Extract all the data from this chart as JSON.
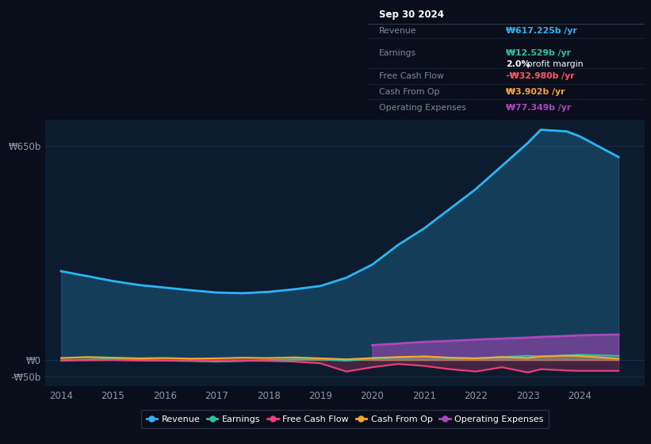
{
  "bg_color": "#0a0e1a",
  "plot_bg_color": "#0d1b2e",
  "grid_color": "#1a3a5c",
  "years": [
    2014,
    2014.5,
    2015,
    2015.5,
    2016,
    2016.5,
    2017,
    2017.5,
    2018,
    2018.5,
    2019,
    2019.5,
    2020,
    2020.5,
    2021,
    2021.5,
    2022,
    2022.5,
    2023,
    2023.25,
    2023.75,
    2024,
    2024.75
  ],
  "revenue": [
    270,
    255,
    240,
    228,
    220,
    212,
    205,
    203,
    207,
    215,
    225,
    250,
    290,
    350,
    400,
    460,
    520,
    590,
    660,
    700,
    695,
    680,
    617
  ],
  "earnings": [
    -2,
    1,
    3,
    0,
    -2,
    -3,
    -5,
    -3,
    -1,
    2,
    2,
    -2,
    4,
    8,
    10,
    6,
    5,
    9,
    13,
    10,
    14,
    16,
    12.5
  ],
  "free_cash_flow": [
    -1,
    -1,
    0,
    -2,
    -2,
    -1,
    -3,
    -2,
    -3,
    -5,
    -10,
    -35,
    -22,
    -12,
    -18,
    -28,
    -35,
    -22,
    -38,
    -28,
    -32,
    -33,
    -33
  ],
  "cash_from_op": [
    6,
    9,
    7,
    5,
    6,
    4,
    5,
    7,
    6,
    8,
    5,
    2,
    6,
    9,
    11,
    7,
    5,
    9,
    6,
    11,
    13,
    12,
    3.9
  ],
  "operating_expenses": [
    0,
    0,
    0,
    0,
    0,
    0,
    0,
    0,
    0,
    0,
    0,
    0,
    45,
    50,
    55,
    58,
    62,
    65,
    68,
    70,
    73,
    75,
    77.3
  ],
  "ylim": [
    -80,
    730
  ],
  "yticks": [
    -50,
    0,
    650
  ],
  "ytick_labels": [
    "-₩50b",
    "₩0",
    "₩650b"
  ],
  "xticks": [
    2014,
    2015,
    2016,
    2017,
    2018,
    2019,
    2020,
    2021,
    2022,
    2023,
    2024
  ],
  "revenue_color": "#29b6f6",
  "earnings_color": "#26c6a0",
  "fcf_color": "#ec407a",
  "cashop_color": "#ffa726",
  "opex_color": "#ab47bc",
  "line_width": 2.0,
  "info_box": {
    "date": "Sep 30 2024",
    "revenue_label": "Revenue",
    "revenue_val": "₩617.225b /yr",
    "earnings_label": "Earnings",
    "earnings_val": "₩12.529b /yr",
    "profit_margin_pct": "2.0%",
    "profit_margin_text": " profit margin",
    "fcf_label": "Free Cash Flow",
    "fcf_val": "-₩32.980b /yr",
    "cashop_label": "Cash From Op",
    "cashop_val": "₩3.902b /yr",
    "opex_label": "Operating Expenses",
    "opex_val": "₩77.349b /yr"
  },
  "legend": [
    {
      "label": "Revenue",
      "color": "#29b6f6"
    },
    {
      "label": "Earnings",
      "color": "#26c6a0"
    },
    {
      "label": "Free Cash Flow",
      "color": "#ec407a"
    },
    {
      "label": "Cash From Op",
      "color": "#ffa726"
    },
    {
      "label": "Operating Expenses",
      "color": "#ab47bc"
    }
  ]
}
